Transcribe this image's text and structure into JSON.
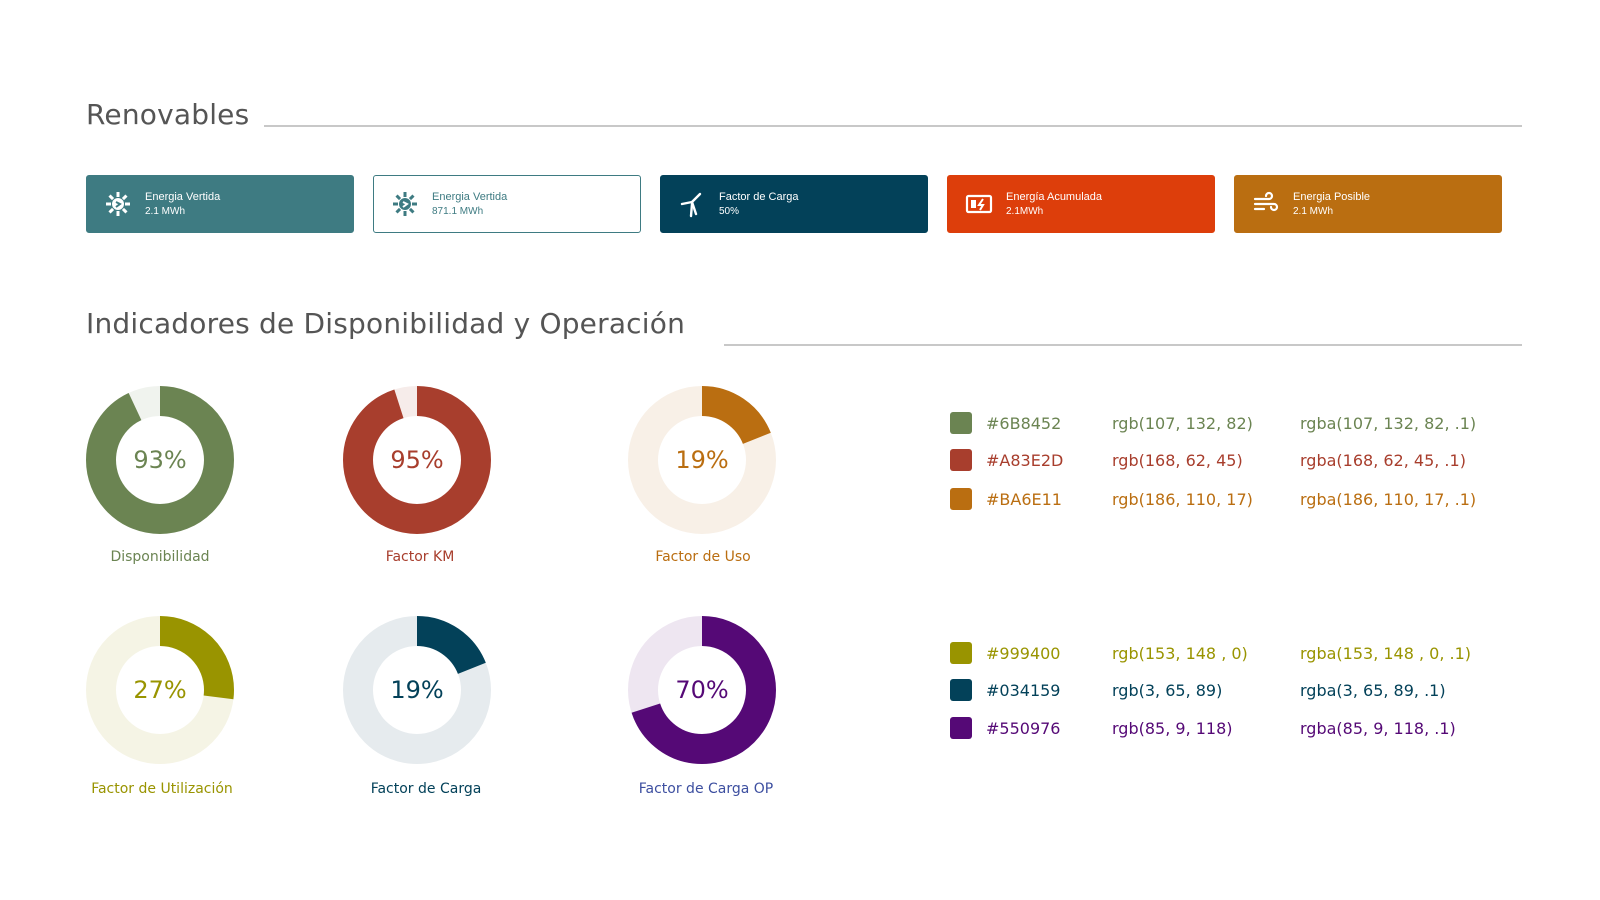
{
  "renovables": {
    "title": "Renovables",
    "cards": [
      {
        "label": "Energia Vertida",
        "value": "2.1 MWh",
        "icon": "solar-gear-icon",
        "bg": "#3E7B82",
        "fg": "#ffffff",
        "border": "#3E7B82"
      },
      {
        "label": "Energia Vertida",
        "value": "871.1 MWh",
        "icon": "solar-gear-icon",
        "bg": "#ffffff",
        "fg": "#3E7B82",
        "border": "#3E7B82"
      },
      {
        "label": "Factor de Carga",
        "value": "50%",
        "icon": "wind-turbine-icon",
        "bg": "#034159",
        "fg": "#ffffff",
        "border": "#034159"
      },
      {
        "label": "Energía Acumulada",
        "value": "2.1MWh",
        "icon": "battery-charge-icon",
        "bg": "#DD3E0B",
        "fg": "#ffffff",
        "border": "#DD3E0B"
      },
      {
        "label": "Energia Posible",
        "value": "2.1 MWh",
        "icon": "wind-icon",
        "bg": "#BA6E11",
        "fg": "#ffffff",
        "border": "#BA6E11"
      }
    ]
  },
  "indicadores": {
    "title": "Indicadores de Disponibilidad y Operación",
    "donuts": [
      {
        "label": "Disponibilidad",
        "value": 93,
        "display": "93%",
        "color": "#6B8452",
        "track": "#F0F3EE"
      },
      {
        "label": "Factor KM",
        "value": 95,
        "display": "95%",
        "color": "#A83E2D",
        "track": "#F6ECEA"
      },
      {
        "label": "Factor de Uso",
        "value": 19,
        "display": "19%",
        "color": "#BA6E11",
        "track": "#F8F0E7"
      },
      {
        "label": "Factor de Utilización",
        "value": 27,
        "display": "27%",
        "color": "#999400",
        "track": "#F5F4E5"
      },
      {
        "label": "Factor de Carga",
        "value": 19,
        "display": "19%",
        "color": "#034159",
        "track": "#E6EBEE"
      },
      {
        "label": "Factor de Carga OP",
        "value": 70,
        "display": "70%",
        "color": "#550976",
        "track": "#EEE6F1",
        "label_color": "#3D4FA0"
      }
    ]
  },
  "palette": [
    {
      "hex": "#6B8452",
      "rgb": "rgb(107, 132, 82)",
      "rgba": "rgba(107, 132, 82, .1)",
      "color": "#6B8452"
    },
    {
      "hex": "#A83E2D",
      "rgb": "rgb(168, 62, 45)",
      "rgba": "rgba(168, 62, 45, .1)",
      "color": "#A83E2D"
    },
    {
      "hex": "#BA6E11",
      "rgb": "rgb(186, 110, 17)",
      "rgba": "rgba(186, 110, 17, .1)",
      "color": "#BA6E11"
    },
    {
      "hex": "#999400",
      "rgb": "rgb(153, 148 , 0)",
      "rgba": "rgba(153, 148 , 0, .1)",
      "color": "#999400"
    },
    {
      "hex": "#034159",
      "rgb": "rgb(3, 65, 89)",
      "rgba": "rgba(3, 65, 89, .1)",
      "color": "#034159"
    },
    {
      "hex": "#550976",
      "rgb": "rgb(85, 9, 118)",
      "rgba": "rgba(85, 9, 118, .1)",
      "color": "#550976"
    }
  ]
}
